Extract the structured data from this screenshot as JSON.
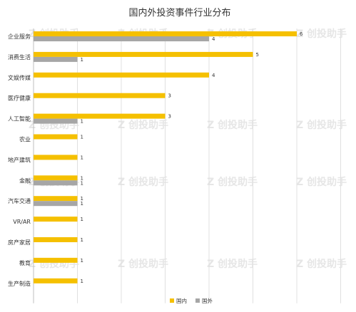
{
  "chart_data": {
    "type": "bar",
    "orientation": "horizontal",
    "title": "国内外投资事件行业分布",
    "categories": [
      "企业服务",
      "消费生活",
      "文娱传媒",
      "医疗健康",
      "人工智能",
      "农业",
      "地产建筑",
      "金融",
      "汽车交通",
      "VR/AR",
      "房产家居",
      "教育",
      "生产制造"
    ],
    "series": [
      {
        "name": "国内",
        "color": "#f5c000",
        "values": [
          6,
          5,
          4,
          3,
          3,
          1,
          1,
          1,
          1,
          1,
          1,
          1,
          1
        ]
      },
      {
        "name": "国外",
        "color": "#a6a6a6",
        "values": [
          4,
          1,
          null,
          null,
          1,
          null,
          null,
          1,
          1,
          null,
          null,
          null,
          null
        ]
      }
    ],
    "xlim": [
      0,
      7
    ],
    "grid": true,
    "legend": "bottom-right",
    "watermark": "创投助手"
  }
}
